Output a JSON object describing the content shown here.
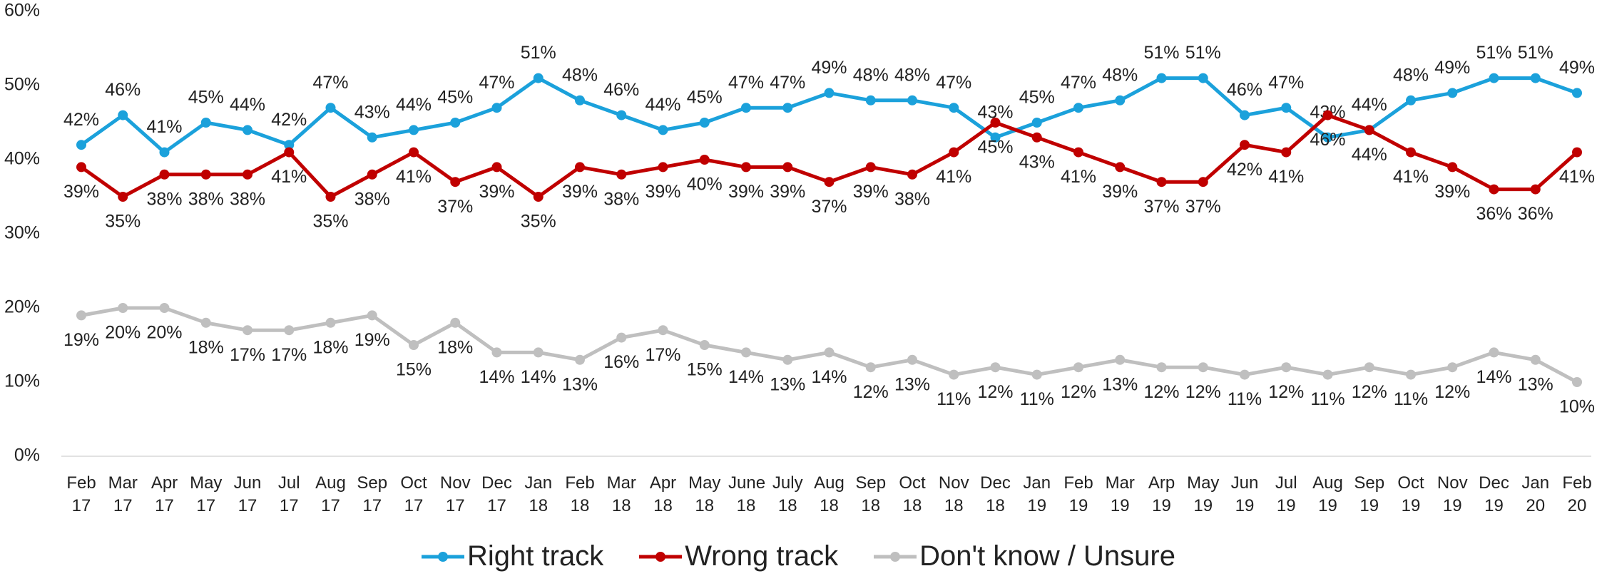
{
  "chart_data": {
    "type": "line",
    "categories": [
      "Feb 17",
      "Mar 17",
      "Apr 17",
      "May 17",
      "Jun 17",
      "Jul 17",
      "Aug 17",
      "Sep 17",
      "Oct 17",
      "Nov 17",
      "Dec 17",
      "Jan 18",
      "Feb 18",
      "Mar 18",
      "Apr 18",
      "May 18",
      "June 18",
      "July 18",
      "Aug 18",
      "Sep 18",
      "Oct 18",
      "Nov 18",
      "Dec 18",
      "Jan 19",
      "Feb 19",
      "Mar 19",
      "Arp 19",
      "May 19",
      "Jun 19",
      "Jul 19",
      "Aug 19",
      "Sep 19",
      "Oct 19",
      "Nov 19",
      "Dec 19",
      "Jan 20",
      "Feb 20"
    ],
    "series": [
      {
        "name": "Right track",
        "color": "#1ba1db",
        "values": [
          42,
          46,
          41,
          45,
          44,
          42,
          47,
          43,
          44,
          45,
          47,
          51,
          48,
          46,
          44,
          45,
          47,
          47,
          49,
          48,
          48,
          47,
          43,
          45,
          47,
          48,
          51,
          51,
          46,
          47,
          43,
          44,
          48,
          49,
          51,
          51,
          49
        ],
        "value_labels": [
          "42%",
          "46%",
          "41%",
          "45%",
          "44%",
          "42%",
          "47%",
          "43%",
          "44%",
          "45%",
          "47%",
          "51%",
          "48%",
          "46%",
          "44%",
          "45%",
          "47%",
          "47%",
          "49%",
          "48%",
          "48%",
          "47%",
          "43%",
          "45%",
          "47%",
          "48%",
          "51%",
          "51%",
          "46%",
          "47%",
          "43%",
          "44%",
          "48%",
          "49%",
          "51%",
          "51%",
          "49%"
        ]
      },
      {
        "name": "Wrong track",
        "color": "#c00000",
        "values": [
          39,
          35,
          38,
          38,
          38,
          41,
          35,
          38,
          41,
          37,
          39,
          35,
          39,
          38,
          39,
          40,
          39,
          39,
          37,
          39,
          38,
          41,
          45,
          43,
          41,
          39,
          37,
          37,
          42,
          41,
          46,
          44,
          41,
          39,
          36,
          36,
          41
        ],
        "value_labels": [
          "39%",
          "35%",
          "38%",
          "38%",
          "38%",
          "41%",
          "35%",
          "38%",
          "41%",
          "37%",
          "39%",
          "35%",
          "39%",
          "38%",
          "39%",
          "40%",
          "39%",
          "39%",
          "37%",
          "39%",
          "38%",
          "41%",
          "45%",
          "43%",
          "41%",
          "39%",
          "37%",
          "37%",
          "42%",
          "41%",
          "46%",
          "44%",
          "41%",
          "39%",
          "36%",
          "36%",
          "41%"
        ]
      },
      {
        "name": "Don't know / Unsure",
        "color": "#bfbfbf",
        "values": [
          19,
          20,
          20,
          18,
          17,
          17,
          18,
          19,
          15,
          18,
          14,
          14,
          13,
          16,
          17,
          15,
          14,
          13,
          14,
          12,
          13,
          11,
          12,
          11,
          12,
          13,
          12,
          12,
          11,
          12,
          11,
          12,
          11,
          12,
          14,
          13,
          10
        ],
        "value_labels": [
          "19%",
          "20%",
          "20%",
          "18%",
          "17%",
          "17%",
          "18%",
          "19%",
          "15%",
          "18%",
          "14%",
          "14%",
          "13%",
          "16%",
          "17%",
          "15%",
          "14%",
          "13%",
          "14%",
          "12%",
          "13%",
          "11%",
          "12%",
          "11%",
          "12%",
          "13%",
          "12%",
          "12%",
          "11%",
          "12%",
          "11%",
          "12%",
          "11%",
          "12%",
          "14%",
          "13%",
          "10%"
        ]
      }
    ],
    "ylim": [
      0,
      60
    ],
    "yticks": [
      {
        "value": 0,
        "label": "0%"
      },
      {
        "value": 10,
        "label": "10%"
      },
      {
        "value": 20,
        "label": "20%"
      },
      {
        "value": 30,
        "label": "30%"
      },
      {
        "value": 40,
        "label": "40%"
      },
      {
        "value": 50,
        "label": "50%"
      },
      {
        "value": 60,
        "label": "60%"
      }
    ],
    "grid": false,
    "legend": "bottom"
  }
}
